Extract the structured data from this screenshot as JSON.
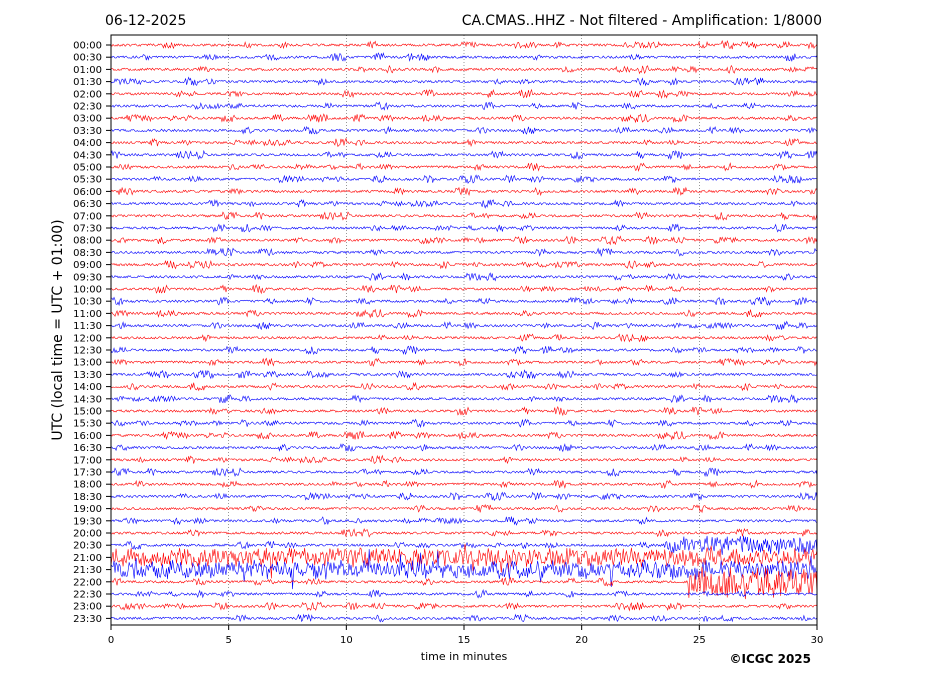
{
  "header": {
    "date": "06-12-2025",
    "title": "CA.CMAS..HHZ - Not filtered - Amplification: 1/8000"
  },
  "footer": {
    "copyright": "©ICGC 2025"
  },
  "colors": {
    "even_row": "#ff0000",
    "odd_row": "#0000ff",
    "grid": "#555555",
    "axis": "#000000"
  },
  "chart_data": {
    "type": "line",
    "title": "CA.CMAS..HHZ - Not filtered - Amplification: 1/8000",
    "xlabel": "time in minutes",
    "ylabel": "UTC (local time = UTC + 01:00)",
    "xlim": [
      0,
      30
    ],
    "xticks": [
      0,
      5,
      10,
      15,
      20,
      25,
      30
    ],
    "grid": "vertical dotted at x ticks",
    "rows": [
      "00:00",
      "00:30",
      "01:00",
      "01:30",
      "02:00",
      "02:30",
      "03:00",
      "03:30",
      "04:00",
      "04:30",
      "05:00",
      "05:30",
      "06:00",
      "06:30",
      "07:00",
      "07:30",
      "08:00",
      "08:30",
      "09:00",
      "09:30",
      "10:00",
      "10:30",
      "11:00",
      "11:30",
      "12:00",
      "12:30",
      "13:00",
      "13:30",
      "14:00",
      "14:30",
      "15:00",
      "15:30",
      "16:00",
      "16:30",
      "17:00",
      "17:30",
      "18:00",
      "18:30",
      "19:00",
      "19:30",
      "20:00",
      "20:30",
      "21:00",
      "21:30",
      "22:00",
      "22:30",
      "23:00",
      "23:30"
    ],
    "row_colors": "alternating red (even) / blue (odd)",
    "events": [
      {
        "row": "21:00",
        "x_start": 0,
        "x_end": 30,
        "type": "large oscillation",
        "color": "red"
      },
      {
        "row": "21:30",
        "x_start": 0,
        "x_end": 30,
        "type": "large oscillation",
        "color": "blue"
      },
      {
        "row": "20:30",
        "x_start": 23.5,
        "x_end": 30,
        "type": "large oscillation",
        "color": "blue"
      },
      {
        "row": "22:00",
        "x_start": 24.5,
        "x_end": 30,
        "type": "large spikes",
        "color": "red"
      }
    ]
  }
}
